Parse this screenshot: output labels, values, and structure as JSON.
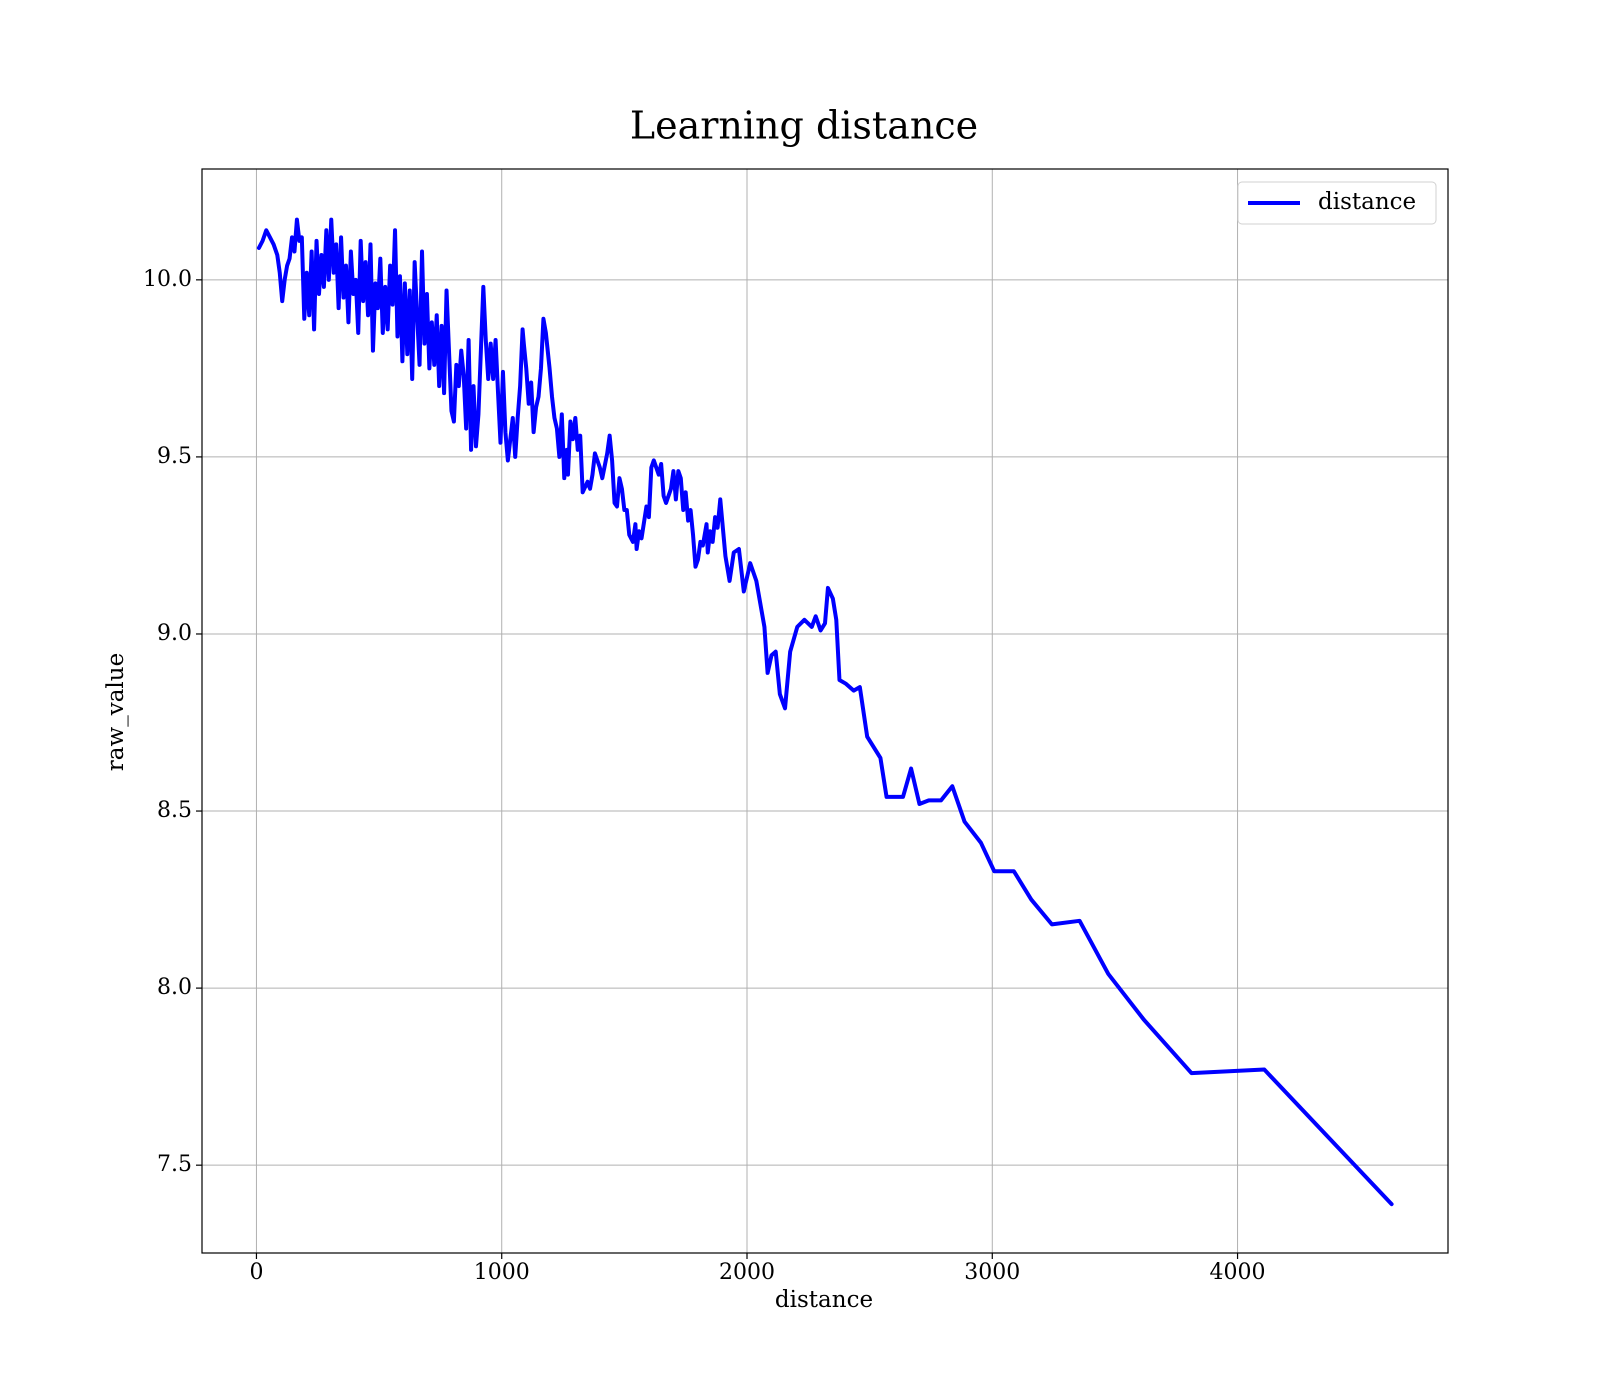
{
  "chart_data": {
    "type": "line",
    "title": "Learning distance",
    "xlabel": "distance",
    "ylabel": "raw_value",
    "xlim": [
      -222,
      4858
    ],
    "ylim": [
      7.252,
      10.313
    ],
    "xticks": [
      0,
      1000,
      2000,
      3000,
      4000
    ],
    "yticks": [
      {
        "value": 7.5,
        "label": "7.5"
      },
      {
        "value": 8,
        "label": "8.0"
      },
      8.5,
      {
        "value": 9,
        "label": "9.0"
      },
      9.5,
      {
        "value": 10,
        "label": "10.0"
      }
    ],
    "grid": true,
    "legend": "upper right",
    "x": [
      10,
      25,
      40,
      55,
      70,
      85,
      95,
      105,
      115,
      125,
      135,
      145,
      155,
      165,
      175,
      185,
      195,
      205,
      215,
      225,
      235,
      245,
      255,
      265,
      275,
      285,
      295,
      305,
      315,
      325,
      335,
      345,
      355,
      365,
      375,
      385,
      395,
      405,
      415,
      425,
      435,
      445,
      455,
      465,
      475,
      485,
      495,
      505,
      515,
      525,
      535,
      545,
      555,
      565,
      575,
      585,
      595,
      605,
      615,
      625,
      635,
      645,
      655,
      665,
      675,
      685,
      695,
      705,
      715,
      725,
      735,
      745,
      755,
      765,
      775,
      785,
      795,
      805,
      815,
      825,
      835,
      845,
      855,
      865,
      875,
      885,
      895,
      905,
      915,
      925,
      935,
      945,
      955,
      965,
      975,
      985,
      995,
      1005,
      1015,
      1025,
      1035,
      1045,
      1055,
      1065,
      1075,
      1085,
      1090,
      1100,
      1110,
      1120,
      1130,
      1140,
      1150,
      1160,
      1170,
      1180,
      1195,
      1205,
      1215,
      1225,
      1235,
      1245,
      1255,
      1265,
      1270,
      1280,
      1290,
      1300,
      1310,
      1320,
      1330,
      1350,
      1360,
      1370,
      1380,
      1400,
      1410,
      1430,
      1440,
      1450,
      1460,
      1470,
      1480,
      1490,
      1500,
      1510,
      1520,
      1535,
      1545,
      1550,
      1560,
      1570,
      1590,
      1600,
      1610,
      1620,
      1640,
      1650,
      1660,
      1670,
      1690,
      1700,
      1710,
      1720,
      1730,
      1740,
      1750,
      1760,
      1770,
      1780,
      1790,
      1800,
      1810,
      1820,
      1835,
      1840,
      1850,
      1860,
      1870,
      1880,
      1891,
      1912,
      1929,
      1946,
      1967,
      1987,
      2013,
      2038,
      2071,
      2084,
      2100,
      2117,
      2134,
      2155,
      2176,
      2205,
      2234,
      2264,
      2280,
      2300,
      2318,
      2330,
      2350,
      2364,
      2377,
      2402,
      2435,
      2460,
      2490,
      2544,
      2569,
      2610,
      2636,
      2669,
      2703,
      2741,
      2791,
      2837,
      2887,
      2954,
      3008,
      3088,
      3159,
      3243,
      3356,
      3473,
      3619,
      3812,
      4109,
      4628
    ],
    "series": [
      {
        "name": "distance",
        "color": "#0000ff",
        "values": [
          10.09,
          10.11,
          10.14,
          10.12,
          10.1,
          10.07,
          10.02,
          9.94,
          10.0,
          10.04,
          10.06,
          10.12,
          10.08,
          10.17,
          10.11,
          10.12,
          9.89,
          10.02,
          9.9,
          10.08,
          9.86,
          10.11,
          9.96,
          10.07,
          9.98,
          10.14,
          10.0,
          10.17,
          10.02,
          10.1,
          9.92,
          10.12,
          9.95,
          10.04,
          9.88,
          10.08,
          9.96,
          10.0,
          9.85,
          10.11,
          9.94,
          10.05,
          9.9,
          10.1,
          9.8,
          9.99,
          9.92,
          10.06,
          9.85,
          9.98,
          9.86,
          10.04,
          9.93,
          10.14,
          9.84,
          10.01,
          9.77,
          9.99,
          9.79,
          9.97,
          9.72,
          10.05,
          9.9,
          9.76,
          10.08,
          9.82,
          9.96,
          9.75,
          9.88,
          9.76,
          9.9,
          9.7,
          9.87,
          9.68,
          9.97,
          9.8,
          9.63,
          9.6,
          9.76,
          9.7,
          9.8,
          9.73,
          9.58,
          9.83,
          9.52,
          9.7,
          9.53,
          9.62,
          9.8,
          9.98,
          9.83,
          9.72,
          9.82,
          9.72,
          9.83,
          9.68,
          9.54,
          9.74,
          9.57,
          9.49,
          9.55,
          9.61,
          9.5,
          9.61,
          9.7,
          9.86,
          9.82,
          9.75,
          9.65,
          9.71,
          9.57,
          9.64,
          9.67,
          9.75,
          9.89,
          9.85,
          9.75,
          9.67,
          9.61,
          9.58,
          9.5,
          9.62,
          9.44,
          9.52,
          9.45,
          9.6,
          9.55,
          9.61,
          9.52,
          9.56,
          9.4,
          9.43,
          9.41,
          9.45,
          9.51,
          9.47,
          9.44,
          9.51,
          9.56,
          9.49,
          9.37,
          9.36,
          9.44,
          9.41,
          9.35,
          9.35,
          9.28,
          9.26,
          9.31,
          9.24,
          9.29,
          9.27,
          9.36,
          9.33,
          9.47,
          9.49,
          9.45,
          9.48,
          9.39,
          9.37,
          9.41,
          9.46,
          9.38,
          9.46,
          9.44,
          9.35,
          9.4,
          9.32,
          9.35,
          9.28,
          9.19,
          9.21,
          9.26,
          9.25,
          9.31,
          9.23,
          9.29,
          9.26,
          9.33,
          9.3,
          9.38,
          9.22,
          9.15,
          9.23,
          9.24,
          9.12,
          9.2,
          9.15,
          9.02,
          8.89,
          8.94,
          8.95,
          8.83,
          8.79,
          8.95,
          9.02,
          9.04,
          9.02,
          9.05,
          9.01,
          9.03,
          9.13,
          9.1,
          9.04,
          8.87,
          8.86,
          8.84,
          8.85,
          8.71,
          8.65,
          8.54,
          8.54,
          8.54,
          8.62,
          8.52,
          8.53,
          8.53,
          8.57,
          8.47,
          8.41,
          8.33,
          8.33,
          8.25,
          8.18,
          8.19,
          8.04,
          7.91,
          7.76,
          7.77,
          7.39
        ]
      }
    ]
  }
}
